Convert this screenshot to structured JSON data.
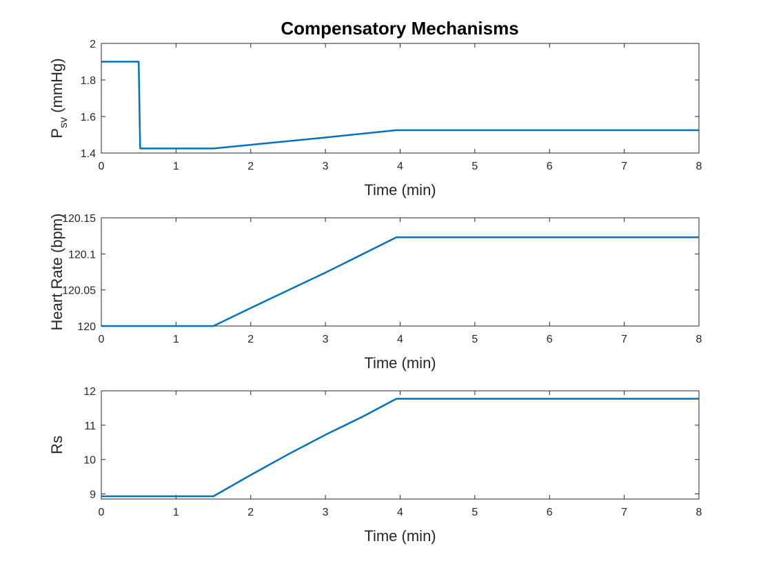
{
  "figure": {
    "title": "Compensatory Mechanisms",
    "line_color": "#0072BD"
  },
  "chart_data": [
    {
      "type": "line",
      "ylabel_main": "P",
      "ylabel_sub": "sv",
      "ylabel_unit": "(mmHg)",
      "xlabel": "Time (min)",
      "xlim": [
        0,
        8
      ],
      "ylim": [
        1.4,
        2
      ],
      "xticks": [
        0,
        1,
        2,
        3,
        4,
        5,
        6,
        7,
        8
      ],
      "xtick_labels": [
        "0",
        "1",
        "2",
        "3",
        "4",
        "5",
        "6",
        "7",
        "8"
      ],
      "yticks": [
        1.4,
        1.6,
        1.8,
        2
      ],
      "ytick_labels": [
        "1.4",
        "1.6",
        "1.8",
        "2"
      ],
      "grid": false,
      "series": [
        {
          "x": [
            0,
            0.5,
            0.52,
            1.5,
            2,
            3,
            3.95,
            8
          ],
          "y": [
            1.9,
            1.9,
            1.425,
            1.425,
            1.445,
            1.485,
            1.525,
            1.525
          ]
        }
      ]
    },
    {
      "type": "line",
      "ylabel": "Heart Rate (bpm)",
      "xlabel": "Time (min)",
      "xlim": [
        0,
        8
      ],
      "ylim": [
        120,
        120.15
      ],
      "xticks": [
        0,
        1,
        2,
        3,
        4,
        5,
        6,
        7,
        8
      ],
      "xtick_labels": [
        "0",
        "1",
        "2",
        "3",
        "4",
        "5",
        "6",
        "7",
        "8"
      ],
      "yticks": [
        120,
        120.05,
        120.1,
        120.15
      ],
      "ytick_labels": [
        "120",
        "120.05",
        "120.1",
        "120.15"
      ],
      "grid": false,
      "series": [
        {
          "x": [
            0,
            1.5,
            2,
            3,
            3.95,
            8
          ],
          "y": [
            120,
            120,
            120.025,
            120.074,
            120.123,
            120.123
          ]
        }
      ]
    },
    {
      "type": "line",
      "ylabel": "Rs",
      "xlabel": "Time (min)",
      "xlim": [
        0,
        8
      ],
      "ylim": [
        8.85,
        12
      ],
      "xticks": [
        0,
        1,
        2,
        3,
        4,
        5,
        6,
        7,
        8
      ],
      "xtick_labels": [
        "0",
        "1",
        "2",
        "3",
        "4",
        "5",
        "6",
        "7",
        "8"
      ],
      "yticks": [
        9,
        10,
        11,
        12
      ],
      "ytick_labels": [
        "9",
        "10",
        "11",
        "12"
      ],
      "grid": false,
      "series": [
        {
          "x": [
            0,
            1.5,
            2,
            2.5,
            3,
            3.5,
            3.95,
            8
          ],
          "y": [
            8.93,
            8.93,
            9.55,
            10.15,
            10.72,
            11.25,
            11.77,
            11.77
          ]
        }
      ]
    }
  ]
}
